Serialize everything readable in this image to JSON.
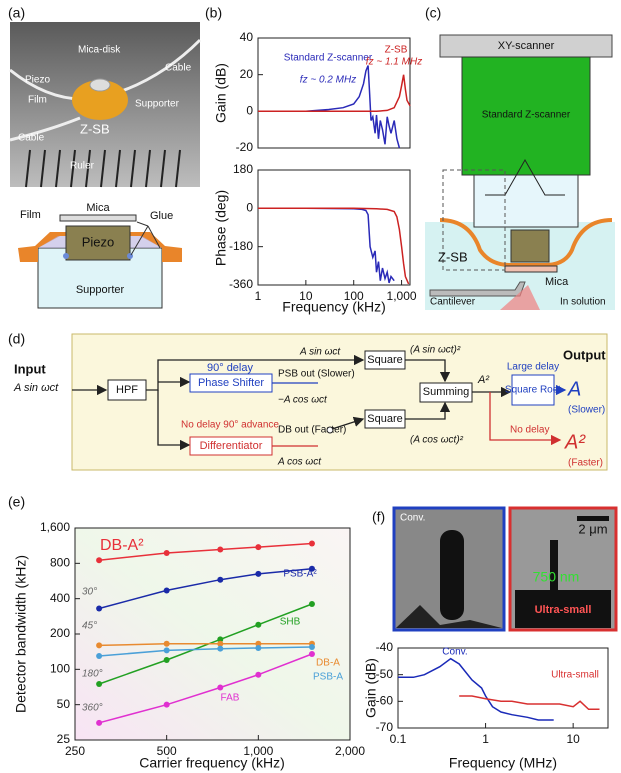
{
  "panel_labels": [
    "(a)",
    "(b)",
    "(c)",
    "(d)",
    "(e)",
    "(f)"
  ],
  "panel_a": {
    "photo_labels": [
      "Mica-disk",
      "Piezo",
      "Film",
      "Cable",
      "Supporter",
      "Cable",
      "Z-SB",
      "Ruler"
    ],
    "schematic_labels": [
      "Mica",
      "Film",
      "Glue",
      "Piezo",
      "Supporter"
    ]
  },
  "panel_c": {
    "labels": [
      "XY-scanner",
      "Standard Z-scanner",
      "Z-SB",
      "Mica",
      "Cantilever",
      "In solution"
    ]
  },
  "panel_d": {
    "input": "Input",
    "input_signal": "A sin ωct",
    "hpf": "HPF",
    "delay_90": "90° delay",
    "phase_shifter": "Phase Shifter",
    "psb_out": "PSB out (Slower)",
    "psb_signal": "−A cos ωct",
    "advance_90": "No delay 90° advance",
    "differentiator": "Differentiator",
    "db_out": "DB out (Faster)",
    "db_signal": "A cos ωct",
    "top_signal": "A sin ωct",
    "square_top": "Square",
    "square_top_out": "(A sin ωct)²",
    "square_bottom": "Square",
    "square_bottom_out": "(A cos ωct)²",
    "summing": "Summing",
    "summing_out": "A²",
    "large_delay": "Large delay",
    "square_root": "Square Root",
    "output": "Output",
    "out_slow": "A",
    "out_slow_note": "(Slower)",
    "no_delay": "No delay",
    "out_fast": "A²",
    "out_fast_note": "(Faster)"
  },
  "panel_f_images": {
    "labels": [
      "Conv.",
      "2 μm",
      "750 nm",
      "Ultra-small"
    ]
  },
  "chart_data": [
    {
      "type": "line",
      "ylabel": "Gain (dB)",
      "xscale": "log",
      "xlim": [
        1,
        1500
      ],
      "ylim": [
        -20,
        40
      ],
      "yticks": [
        -20,
        0,
        20,
        40
      ],
      "annotations": [
        "fz ~ 0.2 MHz",
        "fz ~ 1.1 MHz"
      ],
      "series": [
        {
          "name": "Standard Z-scanner",
          "color": "#2a2ab8",
          "x": [
            1,
            3,
            10,
            30,
            60,
            100,
            130,
            160,
            180,
            200,
            215,
            230,
            250,
            280,
            300,
            330,
            360,
            400,
            450,
            500,
            550,
            600,
            700,
            800,
            900
          ],
          "values": [
            0,
            0,
            0,
            1,
            2,
            4,
            8,
            15,
            22,
            25,
            10,
            -5,
            -3,
            -12,
            -2,
            -15,
            -5,
            -10,
            -18,
            -3,
            -8,
            -12,
            -5,
            -15,
            -20
          ]
        },
        {
          "name": "Z-SB",
          "color": "#cc2222",
          "x": [
            1,
            10,
            100,
            300,
            500,
            700,
            900,
            1000,
            1100,
            1200,
            1300,
            1500
          ],
          "values": [
            0,
            0,
            0,
            0,
            0.5,
            2,
            8,
            14,
            20,
            12,
            6,
            3
          ]
        }
      ]
    },
    {
      "type": "line",
      "ylabel": "Phase (deg)",
      "xlabel": "Frequency (kHz)",
      "xscale": "log",
      "xlim": [
        1,
        1500
      ],
      "ylim": [
        -360,
        180
      ],
      "yticks": [
        -360,
        -180,
        0,
        180
      ],
      "xticks": [
        1,
        10,
        100,
        {
          "value": 1000,
          "label": "1,000"
        }
      ],
      "series": [
        {
          "color": "#2a2ab8",
          "x": [
            1,
            10,
            100,
            150,
            180,
            200,
            220,
            250,
            280,
            300,
            330,
            360,
            400,
            450,
            500,
            550,
            600,
            700
          ],
          "values": [
            0,
            0,
            -2,
            -5,
            -10,
            -30,
            -180,
            -230,
            -200,
            -300,
            -250,
            -340,
            -280,
            -330,
            -300,
            -350,
            -320,
            -340
          ]
        },
        {
          "color": "#cc2222",
          "x": [
            1,
            10,
            100,
            300,
            500,
            700,
            800,
            900,
            1000,
            1100,
            1200,
            1400
          ],
          "values": [
            0,
            0,
            0,
            -2,
            -5,
            -15,
            -40,
            -100,
            -180,
            -260,
            -320,
            -355
          ]
        }
      ]
    },
    {
      "type": "line",
      "markers": true,
      "ylabel": "Detector bandwidth (kHz)",
      "xlabel": "Carrier frequency (kHz)",
      "xscale": "log",
      "yscale": "log",
      "xlim": [
        250,
        2000
      ],
      "ylim": [
        25,
        1600
      ],
      "xticks": [
        250,
        500,
        {
          "value": 1000,
          "label": "1,000"
        },
        {
          "value": 2000,
          "label": "2,000"
        }
      ],
      "yticks": [
        25,
        50,
        100,
        200,
        400,
        800,
        {
          "value": 1600,
          "label": "1,600"
        }
      ],
      "annotations": [
        "30°",
        "45°",
        "180°",
        "360°"
      ],
      "series": [
        {
          "name": "DB-A²",
          "color": "#e8303a",
          "x": [
            300,
            500,
            750,
            1000,
            1500
          ],
          "values": [
            850,
            980,
            1050,
            1100,
            1180
          ]
        },
        {
          "name": "PSB-A²",
          "color": "#1a2aa8",
          "x": [
            300,
            500,
            750,
            1000,
            1500
          ],
          "values": [
            330,
            470,
            580,
            650,
            720
          ]
        },
        {
          "name": "SHB",
          "color": "#22a022",
          "x": [
            300,
            500,
            750,
            1000,
            1500
          ],
          "values": [
            75,
            120,
            180,
            240,
            360
          ]
        },
        {
          "name": "DB-A",
          "color": "#e88a30",
          "x": [
            300,
            500,
            750,
            1000,
            1500
          ],
          "values": [
            160,
            165,
            165,
            165,
            165
          ]
        },
        {
          "name": "PSB-A",
          "color": "#4aa0d8",
          "x": [
            300,
            500,
            750,
            1000,
            1500
          ],
          "values": [
            130,
            145,
            150,
            152,
            155
          ]
        },
        {
          "name": "FAB",
          "color": "#e030d0",
          "x": [
            300,
            500,
            750,
            1000,
            1500
          ],
          "values": [
            35,
            50,
            70,
            90,
            135
          ]
        }
      ]
    },
    {
      "type": "line",
      "ylabel": "Gain (dB)",
      "xlabel": "Frequency (MHz)",
      "xscale": "log",
      "xlim": [
        0.1,
        25
      ],
      "ylim": [
        -70,
        -40
      ],
      "xticks": [
        0.1,
        1,
        10
      ],
      "yticks": [
        -70,
        -60,
        -50,
        -40
      ],
      "series": [
        {
          "name": "Conv.",
          "color": "#1a2ab8",
          "x": [
            0.1,
            0.15,
            0.2,
            0.3,
            0.4,
            0.5,
            0.7,
            0.9,
            1,
            1.2,
            1.5,
            2,
            3,
            4,
            5,
            6
          ],
          "values": [
            -51,
            -51,
            -50,
            -47,
            -44,
            -46,
            -52,
            -55,
            -58,
            -62,
            -64,
            -65,
            -66,
            -67,
            -67,
            -67
          ]
        },
        {
          "name": "Ultra-small",
          "color": "#d83030",
          "x": [
            0.5,
            0.7,
            1,
            1.5,
            2,
            3,
            5,
            7,
            10,
            12,
            15,
            20
          ],
          "values": [
            -58,
            -58,
            -59,
            -60,
            -60,
            -61,
            -61,
            -61,
            -62,
            -60,
            -63,
            -63
          ]
        }
      ]
    }
  ]
}
